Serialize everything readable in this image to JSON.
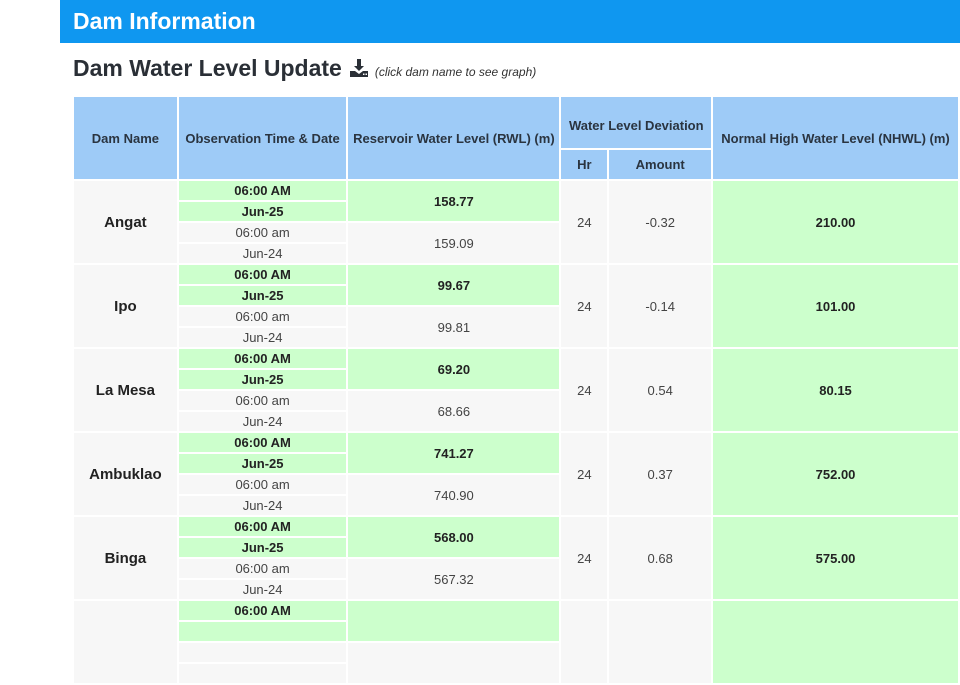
{
  "header": {
    "title": "Dam Information",
    "accent": "#0f97f0"
  },
  "section": {
    "title": "Dam Water Level Update",
    "download_icon": "download-icon",
    "hint": "(click dam name to see graph)"
  },
  "table": {
    "columns": {
      "dam_name": "Dam Name",
      "observation": "Observation Time & Date",
      "rwl": "Reservoir Water Level (RWL) (m)",
      "deviation": "Water Level Deviation",
      "hr": "Hr",
      "amount": "Amount",
      "nhwl": "Normal High Water Level (NHWL) (m)"
    },
    "colors": {
      "header": "#9ecbf7",
      "current": "#ccffcc",
      "previous": "#f7f7f7"
    },
    "rows": [
      {
        "name": "Angat",
        "cur_time": "06:00 AM",
        "cur_date": "Jun-25",
        "cur_rwl": "158.77",
        "prev_time": "06:00 am",
        "prev_date": "Jun-24",
        "prev_rwl": "159.09",
        "hr": "24",
        "amount": "-0.32",
        "nhwl": "210.00"
      },
      {
        "name": "Ipo",
        "cur_time": "06:00 AM",
        "cur_date": "Jun-25",
        "cur_rwl": "99.67",
        "prev_time": "06:00 am",
        "prev_date": "Jun-24",
        "prev_rwl": "99.81",
        "hr": "24",
        "amount": "-0.14",
        "nhwl": "101.00"
      },
      {
        "name": "La Mesa",
        "cur_time": "06:00 AM",
        "cur_date": "Jun-25",
        "cur_rwl": "69.20",
        "prev_time": "06:00 am",
        "prev_date": "Jun-24",
        "prev_rwl": "68.66",
        "hr": "24",
        "amount": "0.54",
        "nhwl": "80.15"
      },
      {
        "name": "Ambuklao",
        "cur_time": "06:00 AM",
        "cur_date": "Jun-25",
        "cur_rwl": "741.27",
        "prev_time": "06:00 am",
        "prev_date": "Jun-24",
        "prev_rwl": "740.90",
        "hr": "24",
        "amount": "0.37",
        "nhwl": "752.00"
      },
      {
        "name": "Binga",
        "cur_time": "06:00 AM",
        "cur_date": "Jun-25",
        "cur_rwl": "568.00",
        "prev_time": "06:00 am",
        "prev_date": "Jun-24",
        "prev_rwl": "567.32",
        "hr": "24",
        "amount": "0.68",
        "nhwl": "575.00"
      },
      {
        "cur_time": "06:00 AM"
      }
    ]
  }
}
